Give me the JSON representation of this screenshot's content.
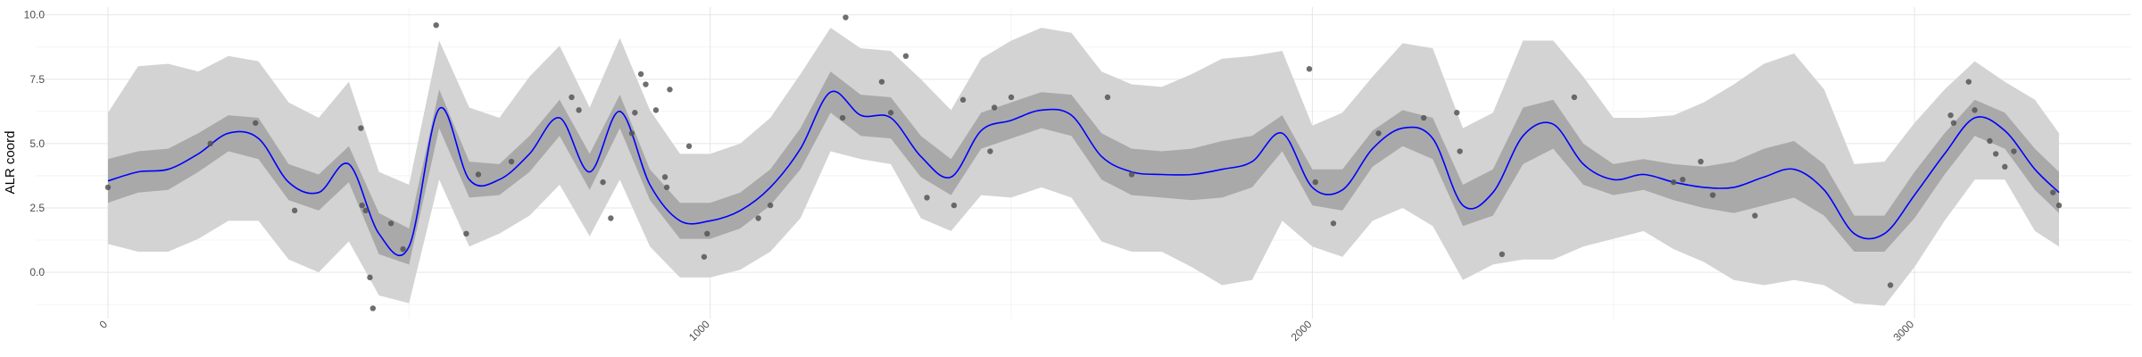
{
  "chart_data": {
    "type": "line",
    "title": "",
    "xlabel": "",
    "ylabel": "ALR coord",
    "xlim": [
      -120,
      3360
    ],
    "ylim": [
      -1.8,
      10.3
    ],
    "x_ticks": [
      {
        "value": 0,
        "label": "0"
      },
      {
        "value": 1000,
        "label": "1000"
      },
      {
        "value": 2000,
        "label": "2000"
      },
      {
        "value": 3000,
        "label": "3000"
      }
    ],
    "y_ticks": [
      {
        "value": 0.0,
        "label": "0.0"
      },
      {
        "value": 2.5,
        "label": "2.5"
      },
      {
        "value": 5.0,
        "label": "5.0"
      },
      {
        "value": 7.5,
        "label": "7.5"
      },
      {
        "value": 10.0,
        "label": "10.0"
      }
    ],
    "grid": true,
    "colors": {
      "line": "#0000ff",
      "inner_band": "#a9a9a9",
      "outer_band": "#d3d3d3",
      "points": "#555555",
      "grid_major": "#e6e6e6",
      "grid_minor": "#f2f2f2"
    },
    "series": [
      {
        "x": [
          0,
          50,
          100,
          150,
          200,
          250,
          300,
          350,
          400,
          450,
          500,
          550,
          600,
          650,
          700,
          750,
          800,
          850,
          900,
          950,
          1000,
          1050,
          1100,
          1150,
          1200,
          1250,
          1300,
          1350,
          1400,
          1450,
          1500,
          1550,
          1600,
          1650,
          1700,
          1750,
          1800,
          1850,
          1900,
          1950,
          2000,
          2050,
          2100,
          2150,
          2200,
          2250,
          2300,
          2350,
          2400,
          2450,
          2500,
          2550,
          2600,
          2650,
          2700,
          2750,
          2800,
          2850,
          2900,
          2950,
          3000,
          3050,
          3100,
          3150,
          3200,
          3240
        ],
        "mean": [
          3.55,
          3.9,
          4.0,
          4.6,
          5.4,
          5.2,
          3.5,
          3.1,
          4.2,
          1.5,
          1.0,
          6.35,
          3.6,
          3.6,
          4.6,
          6.0,
          3.9,
          6.25,
          3.4,
          2.0,
          2.0,
          2.4,
          3.3,
          4.8,
          7.0,
          6.1,
          6.0,
          4.5,
          3.7,
          5.5,
          5.9,
          6.3,
          6.1,
          4.5,
          3.9,
          3.8,
          3.8,
          4.0,
          4.3,
          5.4,
          3.3,
          3.2,
          4.8,
          5.6,
          5.2,
          2.6,
          3.1,
          5.3,
          5.75,
          4.2,
          3.6,
          3.8,
          3.5,
          3.3,
          3.3,
          3.7,
          4.0,
          3.2,
          1.5,
          1.5,
          3.0,
          4.6,
          6.0,
          5.5,
          4.0,
          3.1
        ],
        "inner_lower": [
          2.7,
          3.1,
          3.2,
          3.9,
          4.7,
          4.4,
          2.8,
          2.4,
          3.5,
          0.7,
          0.3,
          5.6,
          2.9,
          3.0,
          3.9,
          5.3,
          3.2,
          5.6,
          2.8,
          1.3,
          1.3,
          1.7,
          2.6,
          4.0,
          6.2,
          5.3,
          5.2,
          3.7,
          3.0,
          4.8,
          5.2,
          5.6,
          5.3,
          3.6,
          3.0,
          2.9,
          2.8,
          2.9,
          3.3,
          4.7,
          2.6,
          2.4,
          4.1,
          4.9,
          4.4,
          1.8,
          2.2,
          4.2,
          4.8,
          3.4,
          3.0,
          3.2,
          2.8,
          2.5,
          2.3,
          2.6,
          2.9,
          2.2,
          0.8,
          0.8,
          2.1,
          3.8,
          5.3,
          4.8,
          3.2,
          2.3
        ],
        "inner_upper": [
          4.4,
          4.7,
          4.8,
          5.4,
          6.1,
          6.0,
          4.2,
          3.8,
          4.9,
          2.3,
          1.7,
          7.1,
          4.3,
          4.2,
          5.3,
          6.7,
          4.6,
          6.9,
          4.0,
          2.7,
          2.7,
          3.1,
          4.0,
          5.6,
          7.8,
          6.9,
          6.8,
          5.3,
          4.4,
          6.2,
          6.6,
          7.0,
          6.9,
          5.4,
          4.8,
          4.7,
          4.8,
          5.1,
          5.3,
          6.1,
          4.0,
          4.0,
          5.5,
          6.3,
          6.0,
          3.4,
          4.0,
          6.4,
          6.7,
          5.0,
          4.2,
          4.4,
          4.2,
          4.1,
          4.3,
          4.8,
          5.1,
          4.2,
          2.2,
          2.2,
          3.9,
          5.4,
          6.7,
          6.2,
          4.8,
          3.9
        ],
        "outer_lower": [
          1.1,
          0.8,
          0.8,
          1.3,
          2.0,
          2.0,
          0.5,
          0.0,
          1.2,
          -0.9,
          -1.2,
          3.6,
          1.0,
          1.5,
          2.2,
          3.4,
          1.4,
          3.6,
          1.0,
          -0.2,
          -0.2,
          0.1,
          0.8,
          2.1,
          4.7,
          4.4,
          4.2,
          2.1,
          1.6,
          3.0,
          2.9,
          3.3,
          2.9,
          1.2,
          0.8,
          0.8,
          0.2,
          -0.5,
          -0.3,
          2.0,
          1.0,
          0.6,
          2.0,
          2.5,
          1.8,
          -0.3,
          0.3,
          0.5,
          0.5,
          1.0,
          1.3,
          1.6,
          0.9,
          0.4,
          -0.3,
          -0.5,
          -0.3,
          -0.5,
          -1.2,
          -1.3,
          0.2,
          2.0,
          3.6,
          3.6,
          1.6,
          1.0
        ],
        "outer_upper": [
          6.2,
          8.0,
          8.1,
          7.8,
          8.4,
          8.2,
          6.6,
          6.0,
          7.4,
          3.9,
          3.4,
          9.0,
          6.4,
          6.0,
          7.6,
          8.8,
          6.4,
          9.1,
          6.3,
          4.6,
          4.6,
          5.0,
          6.0,
          7.7,
          9.5,
          8.7,
          8.6,
          7.5,
          6.3,
          8.3,
          9.0,
          9.5,
          9.3,
          7.8,
          7.3,
          7.2,
          7.7,
          8.3,
          8.4,
          8.6,
          5.7,
          6.2,
          7.6,
          8.9,
          8.7,
          5.6,
          6.2,
          9.0,
          9.0,
          7.6,
          6.0,
          6.0,
          6.1,
          6.6,
          7.3,
          8.1,
          8.5,
          7.1,
          4.2,
          4.3,
          5.8,
          7.1,
          8.2,
          7.4,
          6.7,
          5.4
        ]
      }
    ],
    "points": [
      {
        "x": 0,
        "y": 3.3
      },
      {
        "x": 170,
        "y": 5.0
      },
      {
        "x": 245,
        "y": 5.8
      },
      {
        "x": 310,
        "y": 2.4
      },
      {
        "x": 420,
        "y": 5.6
      },
      {
        "x": 422,
        "y": 2.6
      },
      {
        "x": 428,
        "y": 2.4
      },
      {
        "x": 435,
        "y": -0.2
      },
      {
        "x": 440,
        "y": -1.4
      },
      {
        "x": 470,
        "y": 1.9
      },
      {
        "x": 490,
        "y": 0.9
      },
      {
        "x": 545,
        "y": 9.6
      },
      {
        "x": 595,
        "y": 1.5
      },
      {
        "x": 615,
        "y": 3.8
      },
      {
        "x": 670,
        "y": 4.3
      },
      {
        "x": 770,
        "y": 6.8
      },
      {
        "x": 782,
        "y": 6.3
      },
      {
        "x": 822,
        "y": 3.5
      },
      {
        "x": 835,
        "y": 2.1
      },
      {
        "x": 870,
        "y": 5.4
      },
      {
        "x": 875,
        "y": 6.2
      },
      {
        "x": 885,
        "y": 7.7
      },
      {
        "x": 893,
        "y": 7.3
      },
      {
        "x": 910,
        "y": 6.3
      },
      {
        "x": 925,
        "y": 3.7
      },
      {
        "x": 928,
        "y": 3.3
      },
      {
        "x": 933,
        "y": 7.1
      },
      {
        "x": 965,
        "y": 4.9
      },
      {
        "x": 990,
        "y": 0.6
      },
      {
        "x": 995,
        "y": 1.5
      },
      {
        "x": 1080,
        "y": 2.1
      },
      {
        "x": 1100,
        "y": 2.6
      },
      {
        "x": 1220,
        "y": 6.0
      },
      {
        "x": 1225,
        "y": 9.9
      },
      {
        "x": 1285,
        "y": 7.4
      },
      {
        "x": 1300,
        "y": 6.2
      },
      {
        "x": 1325,
        "y": 8.4
      },
      {
        "x": 1360,
        "y": 2.9
      },
      {
        "x": 1405,
        "y": 2.6
      },
      {
        "x": 1420,
        "y": 6.7
      },
      {
        "x": 1465,
        "y": 4.7
      },
      {
        "x": 1472,
        "y": 6.4
      },
      {
        "x": 1500,
        "y": 6.8
      },
      {
        "x": 1660,
        "y": 6.8
      },
      {
        "x": 1700,
        "y": 3.8
      },
      {
        "x": 1995,
        "y": 7.9
      },
      {
        "x": 2005,
        "y": 3.5
      },
      {
        "x": 2035,
        "y": 1.9
      },
      {
        "x": 2110,
        "y": 5.4
      },
      {
        "x": 2185,
        "y": 6.0
      },
      {
        "x": 2240,
        "y": 6.2
      },
      {
        "x": 2245,
        "y": 4.7
      },
      {
        "x": 2315,
        "y": 0.7
      },
      {
        "x": 2435,
        "y": 6.8
      },
      {
        "x": 2600,
        "y": 3.5
      },
      {
        "x": 2615,
        "y": 3.6
      },
      {
        "x": 2645,
        "y": 4.3
      },
      {
        "x": 2665,
        "y": 3.0
      },
      {
        "x": 2735,
        "y": 2.2
      },
      {
        "x": 2960,
        "y": -0.5
      },
      {
        "x": 3060,
        "y": 6.1
      },
      {
        "x": 3065,
        "y": 5.8
      },
      {
        "x": 3090,
        "y": 7.4
      },
      {
        "x": 3100,
        "y": 6.3
      },
      {
        "x": 3125,
        "y": 5.1
      },
      {
        "x": 3135,
        "y": 4.6
      },
      {
        "x": 3150,
        "y": 4.1
      },
      {
        "x": 3165,
        "y": 4.7
      },
      {
        "x": 3230,
        "y": 3.1
      },
      {
        "x": 3240,
        "y": 2.6
      }
    ]
  }
}
